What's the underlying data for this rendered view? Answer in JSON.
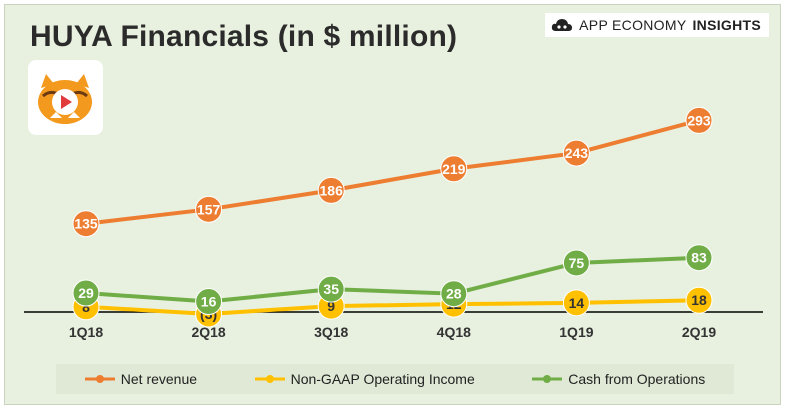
{
  "title": "HUYA Financials (in $ million)",
  "brand": {
    "text_regular": "APP ECONOMY",
    "text_bold": "INSIGHTS",
    "icon": "cloud-icon"
  },
  "logo": {
    "icon": "huya-tiger-logo-icon"
  },
  "colors": {
    "net_revenue": "#ed7d31",
    "operating_income": "#ffc000",
    "cash_ops": "#70ad47",
    "background": "#e8f1df"
  },
  "chart_data": {
    "type": "line",
    "title": "HUYA Financials (in $ million)",
    "categories": [
      "1Q18",
      "2Q18",
      "3Q18",
      "4Q18",
      "1Q19",
      "2Q19"
    ],
    "series": [
      {
        "name": "Net revenue",
        "values": [
          135,
          157,
          186,
          219,
          243,
          293
        ],
        "labels": [
          "135",
          "157",
          "186",
          "219",
          "243",
          "293"
        ]
      },
      {
        "name": "Non-GAAP Operating Income",
        "values": [
          8,
          -3,
          9,
          12,
          14,
          18
        ],
        "labels": [
          "8",
          "(3)",
          "9",
          "12",
          "14",
          "18"
        ]
      },
      {
        "name": "Cash from Operations",
        "values": [
          29,
          16,
          35,
          28,
          75,
          83
        ],
        "labels": [
          "29",
          "16",
          "35",
          "28",
          "75",
          "83"
        ]
      }
    ],
    "ylim": [
      -10,
      300
    ],
    "grid": false,
    "legend_position": "bottom"
  }
}
